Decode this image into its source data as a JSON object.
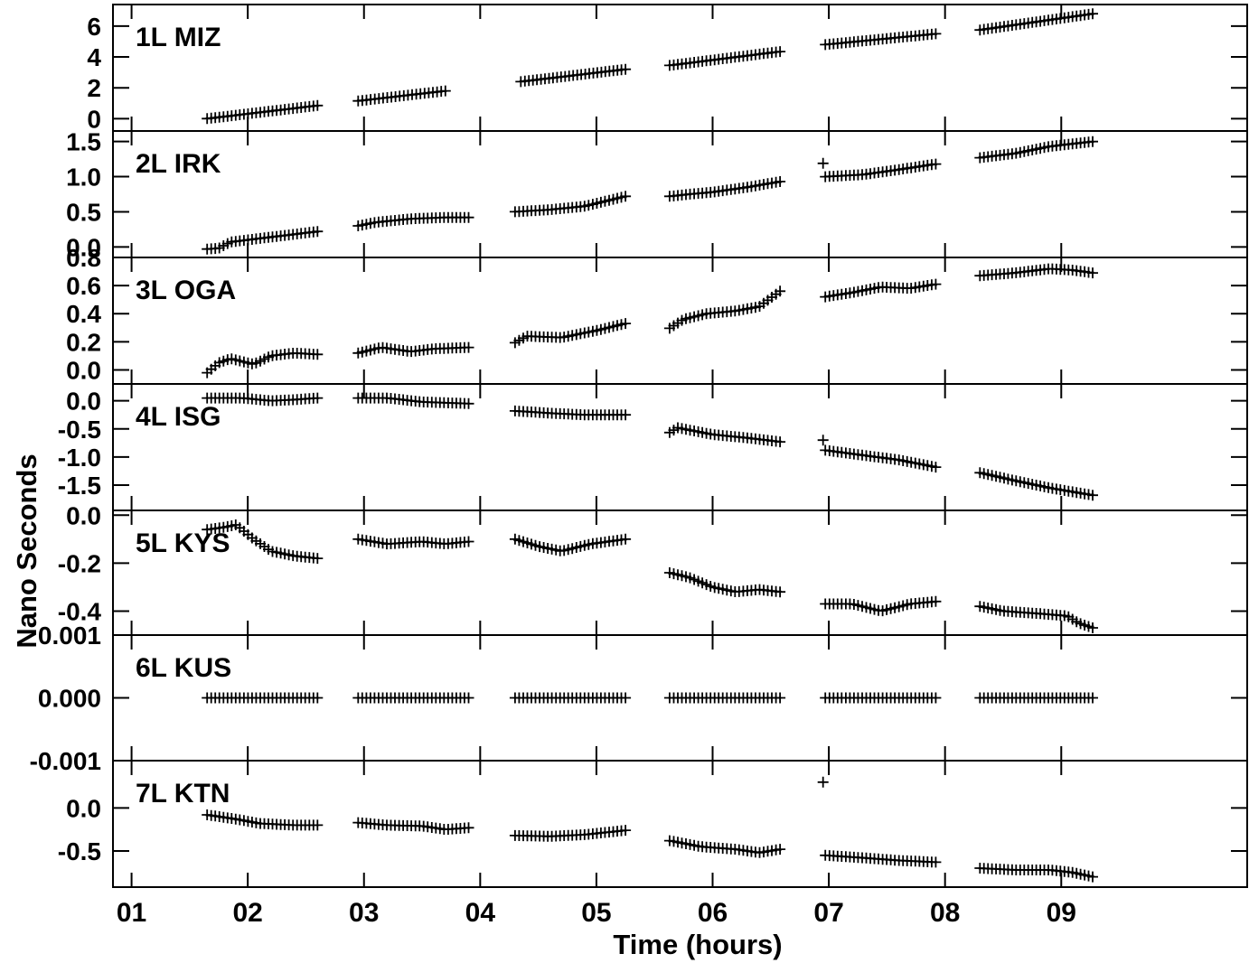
{
  "chart_data": {
    "type": "scatter",
    "marker": "plus",
    "x_axis": {
      "label": "Time (hours)",
      "ticks": [
        1,
        2,
        3,
        4,
        5,
        6,
        7,
        8,
        9
      ],
      "tick_labels": [
        "01",
        "02",
        "03",
        "04",
        "05",
        "06",
        "07",
        "08",
        "09"
      ],
      "range": [
        0.84,
        10.6
      ]
    },
    "y_label": "Nano Seconds",
    "segments": [
      [
        1.65,
        2.6
      ],
      [
        2.95,
        3.9
      ],
      [
        4.3,
        5.25
      ],
      [
        5.63,
        6.58
      ],
      [
        6.97,
        7.92
      ],
      [
        8.3,
        9.27
      ]
    ],
    "panels": [
      {
        "label": "1L MIZ",
        "ylim": [
          -0.8,
          7.4
        ],
        "yticks": [
          0,
          2,
          4,
          6
        ],
        "ytick_labels": [
          "0",
          "2",
          "4",
          "6"
        ],
        "series": [
          [
            [
              1.65,
              0.0
            ],
            [
              2.6,
              0.85
            ]
          ],
          [
            [
              2.95,
              1.15
            ],
            [
              3.7,
              1.8
            ]
          ],
          [
            [
              4.35,
              2.4
            ],
            [
              5.25,
              3.2
            ]
          ],
          [
            [
              5.63,
              3.45
            ],
            [
              6.58,
              4.35
            ]
          ],
          [
            [
              6.97,
              4.8
            ],
            [
              7.92,
              5.5
            ]
          ],
          [
            [
              8.3,
              5.75
            ],
            [
              9.27,
              6.8
            ]
          ]
        ]
      },
      {
        "label": "2L IRK",
        "ylim": [
          -0.15,
          1.65
        ],
        "yticks": [
          0.0,
          0.5,
          1.0,
          1.5
        ],
        "ytick_labels": [
          "0.0",
          "0.5",
          "1.0",
          "1.5"
        ],
        "series": [
          [
            [
              1.65,
              -0.03
            ],
            [
              1.75,
              -0.02
            ],
            [
              1.85,
              0.07
            ],
            [
              2.0,
              0.1
            ],
            [
              2.2,
              0.14
            ],
            [
              2.4,
              0.18
            ],
            [
              2.6,
              0.22
            ]
          ],
          [
            [
              2.95,
              0.3
            ],
            [
              3.1,
              0.35
            ],
            [
              3.4,
              0.4
            ],
            [
              3.7,
              0.42
            ],
            [
              3.9,
              0.42
            ]
          ],
          [
            [
              4.3,
              0.5
            ],
            [
              4.6,
              0.53
            ],
            [
              4.9,
              0.58
            ],
            [
              5.25,
              0.72
            ]
          ],
          [
            [
              5.63,
              0.72
            ],
            [
              5.8,
              0.75
            ],
            [
              6.0,
              0.78
            ],
            [
              6.3,
              0.85
            ],
            [
              6.58,
              0.93
            ]
          ],
          [
            [
              6.97,
              1.0
            ],
            [
              7.3,
              1.03
            ],
            [
              7.6,
              1.1
            ],
            [
              7.92,
              1.18
            ]
          ],
          [
            [
              8.3,
              1.27
            ],
            [
              8.6,
              1.33
            ],
            [
              8.9,
              1.43
            ],
            [
              9.27,
              1.5
            ]
          ]
        ],
        "outliers": [
          [
            6.95,
            1.19
          ]
        ]
      },
      {
        "label": "3L OGA",
        "ylim": [
          -0.1,
          0.8
        ],
        "yticks": [
          0.0,
          0.2,
          0.4,
          0.6,
          0.8
        ],
        "ytick_labels": [
          "0.0",
          "0.2",
          "0.4",
          "0.6",
          "0.8"
        ],
        "series": [
          [
            [
              1.65,
              -0.02
            ],
            [
              1.75,
              0.05
            ],
            [
              1.85,
              0.08
            ],
            [
              1.95,
              0.06
            ],
            [
              2.05,
              0.04
            ],
            [
              2.2,
              0.1
            ],
            [
              2.4,
              0.12
            ],
            [
              2.6,
              0.11
            ]
          ],
          [
            [
              2.95,
              0.12
            ],
            [
              3.15,
              0.16
            ],
            [
              3.4,
              0.13
            ],
            [
              3.6,
              0.15
            ],
            [
              3.9,
              0.16
            ]
          ],
          [
            [
              4.25,
              0.17
            ],
            [
              4.4,
              0.24
            ],
            [
              4.7,
              0.23
            ],
            [
              5.0,
              0.28
            ],
            [
              5.25,
              0.33
            ]
          ],
          [
            [
              5.6,
              0.28
            ],
            [
              5.75,
              0.36
            ],
            [
              5.95,
              0.4
            ],
            [
              6.2,
              0.42
            ],
            [
              6.4,
              0.45
            ],
            [
              6.58,
              0.56
            ]
          ],
          [
            [
              6.97,
              0.52
            ],
            [
              7.2,
              0.55
            ],
            [
              7.45,
              0.59
            ],
            [
              7.7,
              0.58
            ],
            [
              7.92,
              0.61
            ]
          ],
          [
            [
              8.3,
              0.67
            ],
            [
              8.6,
              0.69
            ],
            [
              8.9,
              0.72
            ],
            [
              9.1,
              0.71
            ],
            [
              9.27,
              0.69
            ]
          ]
        ]
      },
      {
        "label": "4L ISG",
        "ylim": [
          -1.95,
          0.3
        ],
        "yticks": [
          0.0,
          -0.5,
          -1.0,
          -1.5
        ],
        "ytick_labels": [
          "0.0",
          "-0.5",
          "-1.0",
          "-1.5"
        ],
        "series": [
          [
            [
              1.65,
              0.05
            ],
            [
              1.95,
              0.05
            ],
            [
              2.2,
              0.0
            ],
            [
              2.4,
              0.02
            ],
            [
              2.6,
              0.05
            ]
          ],
          [
            [
              2.95,
              0.05
            ],
            [
              3.2,
              0.05
            ],
            [
              3.5,
              -0.02
            ],
            [
              3.9,
              -0.05
            ]
          ],
          [
            [
              4.3,
              -0.18
            ],
            [
              4.6,
              -0.22
            ],
            [
              4.9,
              -0.25
            ],
            [
              5.25,
              -0.25
            ]
          ],
          [
            [
              5.6,
              -0.6
            ],
            [
              5.7,
              -0.48
            ],
            [
              6.0,
              -0.6
            ],
            [
              6.3,
              -0.66
            ],
            [
              6.58,
              -0.73
            ]
          ],
          [
            [
              6.97,
              -0.88
            ],
            [
              7.3,
              -0.97
            ],
            [
              7.6,
              -1.05
            ],
            [
              7.92,
              -1.18
            ]
          ],
          [
            [
              8.3,
              -1.28
            ],
            [
              8.6,
              -1.42
            ],
            [
              8.9,
              -1.55
            ],
            [
              9.27,
              -1.68
            ]
          ]
        ],
        "outliers": [
          [
            6.95,
            -0.7
          ]
        ]
      },
      {
        "label": "5L KYS",
        "ylim": [
          -0.5,
          0.02
        ],
        "yticks": [
          0.0,
          -0.2,
          -0.4
        ],
        "ytick_labels": [
          "0.0",
          "-0.2",
          "-0.4"
        ],
        "series": [
          [
            [
              1.65,
              -0.06
            ],
            [
              1.8,
              -0.05
            ],
            [
              1.9,
              -0.04
            ],
            [
              2.05,
              -0.1
            ],
            [
              2.2,
              -0.15
            ],
            [
              2.4,
              -0.17
            ],
            [
              2.6,
              -0.18
            ]
          ],
          [
            [
              2.95,
              -0.1
            ],
            [
              3.2,
              -0.12
            ],
            [
              3.5,
              -0.11
            ],
            [
              3.7,
              -0.12
            ],
            [
              3.9,
              -0.11
            ]
          ],
          [
            [
              4.3,
              -0.1
            ],
            [
              4.5,
              -0.13
            ],
            [
              4.7,
              -0.15
            ],
            [
              4.95,
              -0.12
            ],
            [
              5.25,
              -0.1
            ]
          ],
          [
            [
              5.63,
              -0.24
            ],
            [
              5.8,
              -0.26
            ],
            [
              6.0,
              -0.3
            ],
            [
              6.2,
              -0.32
            ],
            [
              6.4,
              -0.31
            ],
            [
              6.58,
              -0.32
            ]
          ],
          [
            [
              6.97,
              -0.37
            ],
            [
              7.2,
              -0.37
            ],
            [
              7.45,
              -0.4
            ],
            [
              7.7,
              -0.37
            ],
            [
              7.92,
              -0.36
            ]
          ],
          [
            [
              8.3,
              -0.38
            ],
            [
              8.5,
              -0.4
            ],
            [
              8.8,
              -0.41
            ],
            [
              9.05,
              -0.42
            ],
            [
              9.15,
              -0.45
            ],
            [
              9.27,
              -0.47
            ]
          ]
        ]
      },
      {
        "label": "6L KUS",
        "ylim": [
          -0.001,
          0.001
        ],
        "yticks": [
          0.001,
          0.0,
          -0.001
        ],
        "ytick_labels": [
          "0.001",
          "0.000",
          "-0.001"
        ],
        "series": [
          [
            [
              1.65,
              0.0
            ],
            [
              2.6,
              0.0
            ]
          ],
          [
            [
              2.95,
              0.0
            ],
            [
              3.9,
              0.0
            ]
          ],
          [
            [
              4.3,
              0.0
            ],
            [
              5.25,
              0.0
            ]
          ],
          [
            [
              5.63,
              0.0
            ],
            [
              6.58,
              0.0
            ]
          ],
          [
            [
              6.97,
              0.0
            ],
            [
              7.92,
              0.0
            ]
          ],
          [
            [
              8.3,
              0.0
            ],
            [
              9.27,
              0.0
            ]
          ]
        ]
      },
      {
        "label": "7L KTN",
        "ylim": [
          -0.92,
          0.55
        ],
        "yticks": [
          0.0,
          -0.5
        ],
        "ytick_labels": [
          "0.0",
          "-0.5"
        ],
        "series": [
          [
            [
              1.65,
              -0.08
            ],
            [
              1.9,
              -0.13
            ],
            [
              2.1,
              -0.18
            ],
            [
              2.4,
              -0.2
            ],
            [
              2.6,
              -0.2
            ]
          ],
          [
            [
              2.95,
              -0.17
            ],
            [
              3.2,
              -0.2
            ],
            [
              3.5,
              -0.21
            ],
            [
              3.7,
              -0.25
            ],
            [
              3.9,
              -0.23
            ]
          ],
          [
            [
              4.3,
              -0.32
            ],
            [
              4.6,
              -0.33
            ],
            [
              4.9,
              -0.31
            ],
            [
              5.25,
              -0.26
            ]
          ],
          [
            [
              5.63,
              -0.38
            ],
            [
              5.9,
              -0.45
            ],
            [
              6.2,
              -0.48
            ],
            [
              6.4,
              -0.52
            ],
            [
              6.58,
              -0.48
            ]
          ],
          [
            [
              6.97,
              -0.55
            ],
            [
              7.3,
              -0.58
            ],
            [
              7.6,
              -0.61
            ],
            [
              7.92,
              -0.63
            ]
          ],
          [
            [
              8.3,
              -0.7
            ],
            [
              8.6,
              -0.72
            ],
            [
              8.9,
              -0.72
            ],
            [
              9.1,
              -0.75
            ],
            [
              9.27,
              -0.8
            ]
          ]
        ],
        "outliers": [
          [
            6.95,
            0.3
          ]
        ]
      }
    ]
  }
}
